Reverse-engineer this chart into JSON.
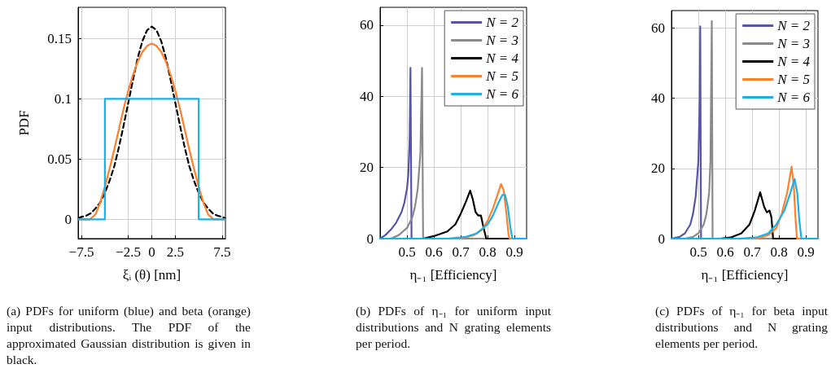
{
  "chart_data": [
    {
      "type": "line",
      "xlabel": "ξᵢ (θ) [nm]",
      "ylabel": "PDF",
      "xlim": [
        -7.85,
        7.85
      ],
      "ylim": [
        -0.016,
        0.176
      ],
      "xticks": [
        {
          "value": -7.5,
          "label": "−7.5"
        },
        {
          "value": -2.5,
          "label": "−2.5"
        },
        0,
        2.5,
        7.5
      ],
      "yticks": [
        0,
        0.05,
        0.1,
        0.15
      ],
      "grid": true,
      "legend": false,
      "annotations": [
        "(a) PDFs for uniform (blue) and beta (orange) input distributions. The PDF of the approximated Gaussian distribution is given in black."
      ],
      "series": [
        {
          "color": "#000000",
          "line_style": "dashed",
          "x": [
            -7.8,
            -7.5,
            -7,
            -6.5,
            -6,
            -5.5,
            -5,
            -4.5,
            -4,
            -3.5,
            -3,
            -2.5,
            -2,
            -1.5,
            -1,
            -0.5,
            0,
            0.5,
            1,
            1.5,
            2,
            2.5,
            3,
            3.5,
            4,
            4.5,
            5,
            5.5,
            6,
            6.5,
            7,
            7.5,
            7.8
          ],
          "values": [
            0.001,
            0.002,
            0.003,
            0.005,
            0.009,
            0.014,
            0.022,
            0.032,
            0.044,
            0.06,
            0.078,
            0.097,
            0.116,
            0.134,
            0.148,
            0.157,
            0.16,
            0.157,
            0.148,
            0.134,
            0.116,
            0.097,
            0.078,
            0.06,
            0.044,
            0.032,
            0.022,
            0.014,
            0.009,
            0.005,
            0.003,
            0.002,
            0.001
          ]
        },
        {
          "color": "#ff7f2a",
          "x": [
            -7.8,
            -6.6,
            -6,
            -5.5,
            -5,
            -4.5,
            -4,
            -3.5,
            -3,
            -2.5,
            -2,
            -1.5,
            -1,
            -0.5,
            0,
            0.5,
            1,
            1.5,
            2,
            2.5,
            3,
            3.5,
            4,
            4.5,
            5,
            5.5,
            6,
            6.6,
            7.8
          ],
          "values": [
            0,
            0,
            0.004,
            0.014,
            0.027,
            0.042,
            0.058,
            0.075,
            0.092,
            0.107,
            0.12,
            0.131,
            0.139,
            0.144,
            0.146,
            0.144,
            0.139,
            0.131,
            0.12,
            0.107,
            0.092,
            0.075,
            0.058,
            0.042,
            0.027,
            0.014,
            0.004,
            0,
            0
          ]
        },
        {
          "color": "#1ab0e6",
          "x": [
            -7.8,
            -5,
            -5,
            5,
            5,
            7.8
          ],
          "values": [
            0,
            0,
            0.1,
            0.1,
            0,
            0
          ]
        }
      ]
    },
    {
      "type": "line",
      "xlabel": "η₋₁ [Efficiency]",
      "xlim": [
        0.4,
        0.945
      ],
      "ylim": [
        0,
        65
      ],
      "xticks": [
        0.5,
        0.6,
        0.7,
        0.8,
        0.9
      ],
      "yticks": [
        0,
        20,
        40,
        60
      ],
      "grid": true,
      "legend": "top right",
      "annotations": [
        "(b) PDFs of η₋₁ for uniform input distributions and N grating elements per period."
      ],
      "series": [
        {
          "name": "N = 2",
          "color": "#5855a6",
          "x": [
            0.4,
            0.42,
            0.44,
            0.46,
            0.48,
            0.49,
            0.5,
            0.505,
            0.51,
            0.513,
            0.517,
            0.945
          ],
          "values": [
            0,
            1,
            2.5,
            4.5,
            7.5,
            10,
            14,
            18,
            28,
            48,
            0,
            0
          ]
        },
        {
          "name": "N = 3",
          "color": "#8a8a8a",
          "x": [
            0.44,
            0.47,
            0.5,
            0.52,
            0.53,
            0.54,
            0.55,
            0.556,
            0.56,
            0.945
          ],
          "values": [
            0,
            1,
            3,
            6,
            9,
            14,
            24,
            48,
            0,
            0
          ]
        },
        {
          "name": "N = 4",
          "color": "#000000",
          "x": [
            0.4,
            0.56,
            0.6,
            0.65,
            0.68,
            0.7,
            0.72,
            0.735,
            0.745,
            0.755,
            0.765,
            0.775,
            0.785,
            0.795,
            0.945
          ],
          "values": [
            0,
            0,
            0.7,
            2,
            4,
            7,
            10.5,
            13.5,
            11,
            7.5,
            6.5,
            6.5,
            3,
            0,
            0
          ]
        },
        {
          "name": "N = 5",
          "color": "#ff7f2a",
          "x": [
            0.4,
            0.7,
            0.75,
            0.78,
            0.8,
            0.82,
            0.84,
            0.85,
            0.86,
            0.87,
            0.878,
            0.882,
            0.945
          ],
          "values": [
            0,
            0,
            1,
            2.5,
            5,
            8.5,
            13,
            15.3,
            13.5,
            7,
            1,
            0,
            0
          ]
        },
        {
          "name": "N = 6",
          "color": "#1ab0e6",
          "x": [
            0.4,
            0.65,
            0.72,
            0.76,
            0.8,
            0.82,
            0.84,
            0.855,
            0.865,
            0.875,
            0.885,
            0.892,
            0.945
          ],
          "values": [
            0,
            0,
            0.5,
            1.5,
            4,
            6.5,
            10,
            12.3,
            12.3,
            9,
            3,
            0,
            0
          ]
        }
      ]
    },
    {
      "type": "line",
      "xlabel": "η₋₁ [Efficiency]",
      "xlim": [
        0.4,
        0.945
      ],
      "ylim": [
        0,
        65
      ],
      "xticks": [
        0.5,
        0.6,
        0.7,
        0.8,
        0.9
      ],
      "yticks": [
        0,
        20,
        40,
        60
      ],
      "grid": true,
      "legend": "top right",
      "annotations": [
        "(c) PDFs of η₋₁ for beta input distributions and N grating elements per period."
      ],
      "series": [
        {
          "name": "N = 2",
          "color": "#5855a6",
          "x": [
            0.4,
            0.43,
            0.45,
            0.47,
            0.48,
            0.49,
            0.5,
            0.505,
            0.507,
            0.51,
            0.945
          ],
          "values": [
            0,
            0.5,
            1.5,
            4,
            7,
            12,
            22,
            40,
            60.5,
            0,
            0
          ]
        },
        {
          "name": "N = 3",
          "color": "#8a8a8a",
          "x": [
            0.45,
            0.48,
            0.5,
            0.52,
            0.53,
            0.54,
            0.545,
            0.55,
            0.553,
            0.945
          ],
          "values": [
            0,
            0.5,
            1.5,
            4,
            7,
            13,
            22,
            62,
            0,
            0
          ]
        },
        {
          "name": "N = 4",
          "color": "#000000",
          "x": [
            0.4,
            0.58,
            0.62,
            0.66,
            0.69,
            0.71,
            0.73,
            0.745,
            0.755,
            0.765,
            0.772,
            0.778,
            0.945
          ],
          "values": [
            0,
            0,
            0.3,
            1.5,
            4,
            8,
            13.2,
            9,
            7.5,
            8,
            6,
            0,
            0
          ]
        },
        {
          "name": "N = 5",
          "color": "#ff7f2a",
          "x": [
            0.4,
            0.72,
            0.76,
            0.79,
            0.81,
            0.83,
            0.847,
            0.855,
            0.862,
            0.867,
            0.945
          ],
          "values": [
            0,
            0,
            1,
            3,
            7,
            13,
            20.5,
            15,
            5,
            0,
            0
          ]
        },
        {
          "name": "N = 6",
          "color": "#1ab0e6",
          "x": [
            0.4,
            0.65,
            0.72,
            0.76,
            0.79,
            0.82,
            0.84,
            0.858,
            0.868,
            0.876,
            0.883,
            0.945
          ],
          "values": [
            0,
            0,
            0.4,
            1.5,
            4,
            8,
            12.5,
            17,
            13,
            5,
            0,
            0
          ]
        }
      ]
    }
  ]
}
